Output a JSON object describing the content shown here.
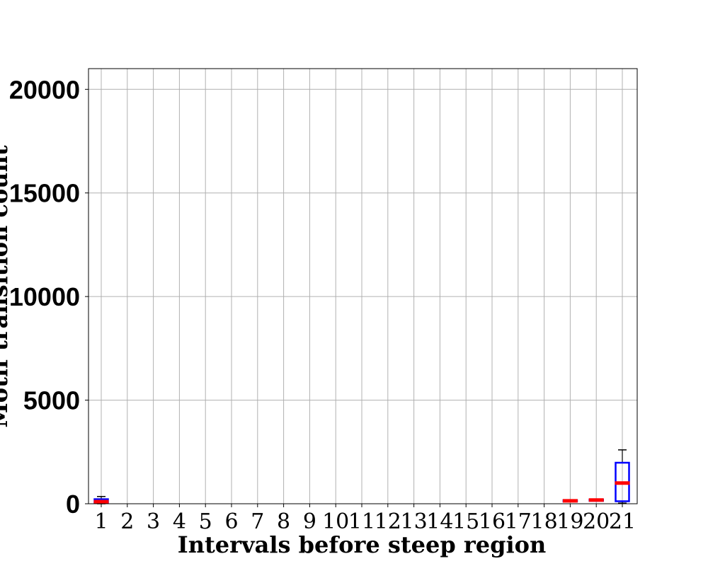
{
  "chart_data": {
    "type": "box",
    "title": "",
    "xlabel": "Intervals before steep region",
    "ylabel": "Motif transition count",
    "categories": [
      "1",
      "2",
      "3",
      "4",
      "5",
      "6",
      "7",
      "8",
      "9",
      "10",
      "11",
      "12",
      "13",
      "14",
      "15",
      "16",
      "17",
      "18",
      "19",
      "20",
      "21"
    ],
    "ylim": [
      0,
      21000
    ],
    "yticks": [
      0,
      5000,
      10000,
      15000,
      20000
    ],
    "grid": true,
    "boxes": [
      {
        "category": "1",
        "whislo": 0,
        "q1": 40,
        "median": 100,
        "q3": 220,
        "whishi": 350
      },
      {
        "category": "19",
        "whislo": 100,
        "q1": 110,
        "median": 140,
        "q3": 170,
        "whishi": 180
      },
      {
        "category": "20",
        "whislo": 130,
        "q1": 140,
        "median": 180,
        "q3": 200,
        "whishi": 210
      },
      {
        "category": "21",
        "whislo": 30,
        "q1": 120,
        "median": 1000,
        "q3": 1980,
        "whishi": 2600
      }
    ],
    "colors": {
      "box": "#0000ff",
      "median": "#ff0000",
      "whisker": "#000000",
      "grid": "#b0b0b0"
    }
  }
}
